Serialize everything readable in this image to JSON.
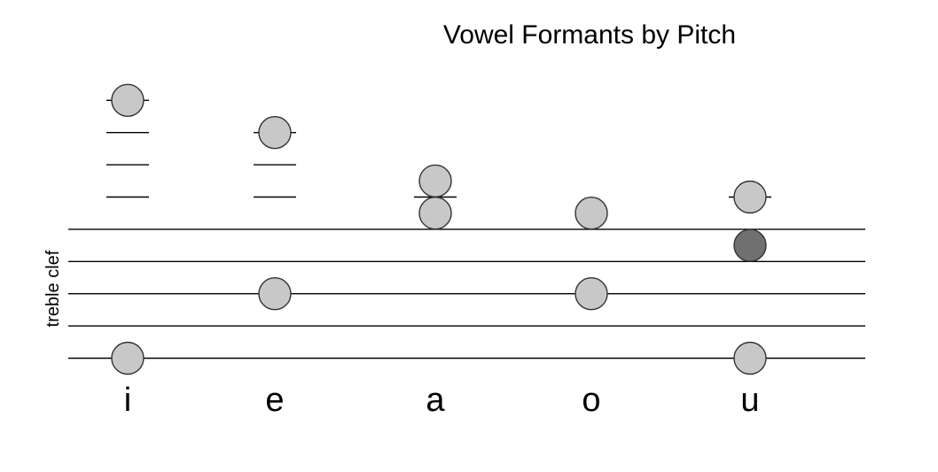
{
  "title": "Vowel Formants by Pitch",
  "staff_label": "treble clef",
  "colors": {
    "note_fill": "#c8c8c8",
    "note_fill_dark": "#707070",
    "stroke": "#000000"
  },
  "vowels": [
    {
      "label": "i",
      "notes": [
        {
          "position": 0,
          "shade": "light"
        },
        {
          "position": 16,
          "shade": "light"
        }
      ]
    },
    {
      "label": "e",
      "notes": [
        {
          "position": 4,
          "shade": "light"
        },
        {
          "position": 14,
          "shade": "light"
        }
      ]
    },
    {
      "label": "a",
      "notes": [
        {
          "position": 9,
          "shade": "light"
        },
        {
          "position": 11,
          "shade": "light"
        }
      ]
    },
    {
      "label": "o",
      "notes": [
        {
          "position": 4,
          "shade": "light"
        },
        {
          "position": 9,
          "shade": "light"
        }
      ]
    },
    {
      "label": "u",
      "notes": [
        {
          "position": 0,
          "shade": "light"
        },
        {
          "position": 7,
          "shade": "dark"
        },
        {
          "position": 10,
          "shade": "light"
        }
      ]
    }
  ]
}
